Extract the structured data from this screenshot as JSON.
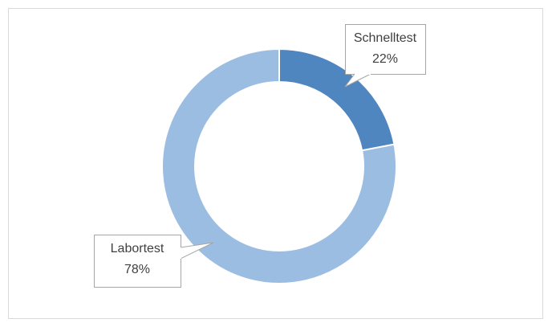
{
  "chart_data": {
    "type": "donut",
    "categories": [
      "Schnelltest",
      "Labortest"
    ],
    "values": [
      22,
      78
    ],
    "value_labels": [
      "22%",
      "78%"
    ],
    "colors": [
      "#4f86c0",
      "#9cbde2"
    ]
  }
}
